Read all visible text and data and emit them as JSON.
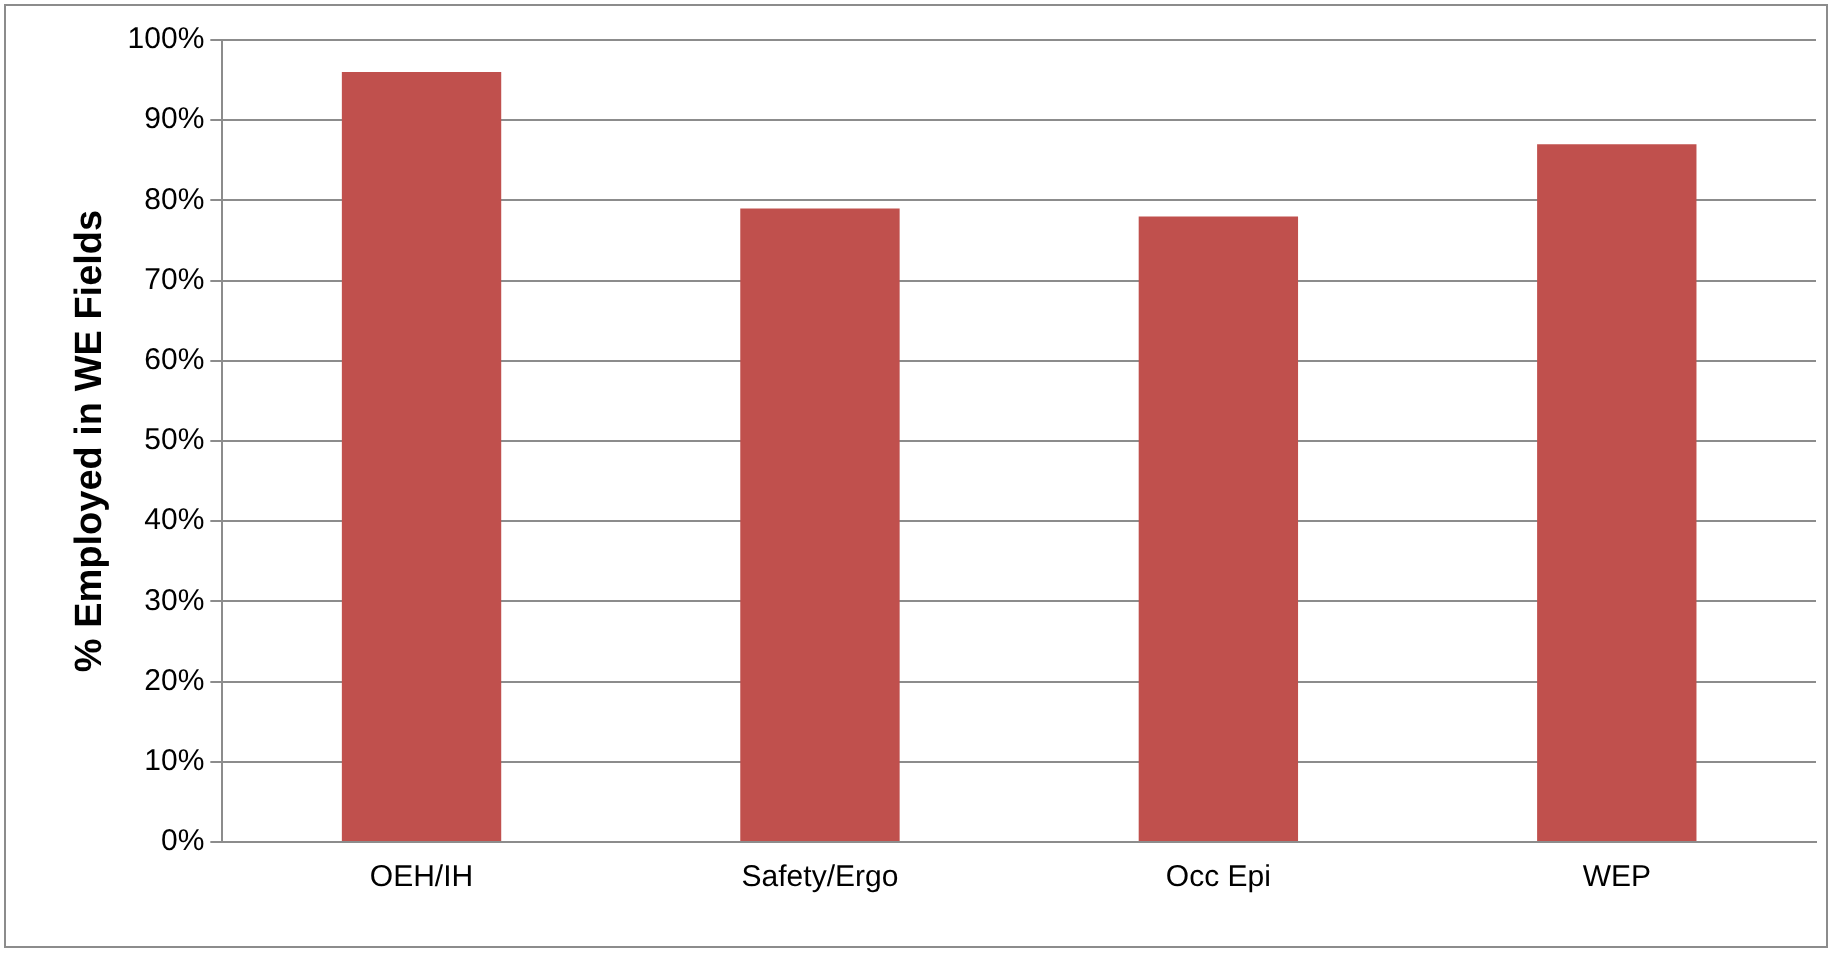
{
  "chart_data": {
    "type": "bar",
    "ylabel": "% Employed in WE Fields",
    "categories": [
      "OEH/IH",
      "Safety/Ergo",
      "Occ Epi",
      "WEP"
    ],
    "values": [
      96,
      79,
      78,
      87
    ],
    "color": "#c0504d",
    "ylim": [
      0,
      100
    ],
    "yticks": [
      {
        "value": 0,
        "label": "0%"
      },
      {
        "value": 10,
        "label": "10%"
      },
      {
        "value": 20,
        "label": "20%"
      },
      {
        "value": 30,
        "label": "30%"
      },
      {
        "value": 40,
        "label": "40%"
      },
      {
        "value": 50,
        "label": "50%"
      },
      {
        "value": 60,
        "label": "60%"
      },
      {
        "value": 70,
        "label": "70%"
      },
      {
        "value": 80,
        "label": "80%"
      },
      {
        "value": 90,
        "label": "90%"
      },
      {
        "value": 100,
        "label": "100%"
      }
    ],
    "grid": "y",
    "legend": false
  }
}
